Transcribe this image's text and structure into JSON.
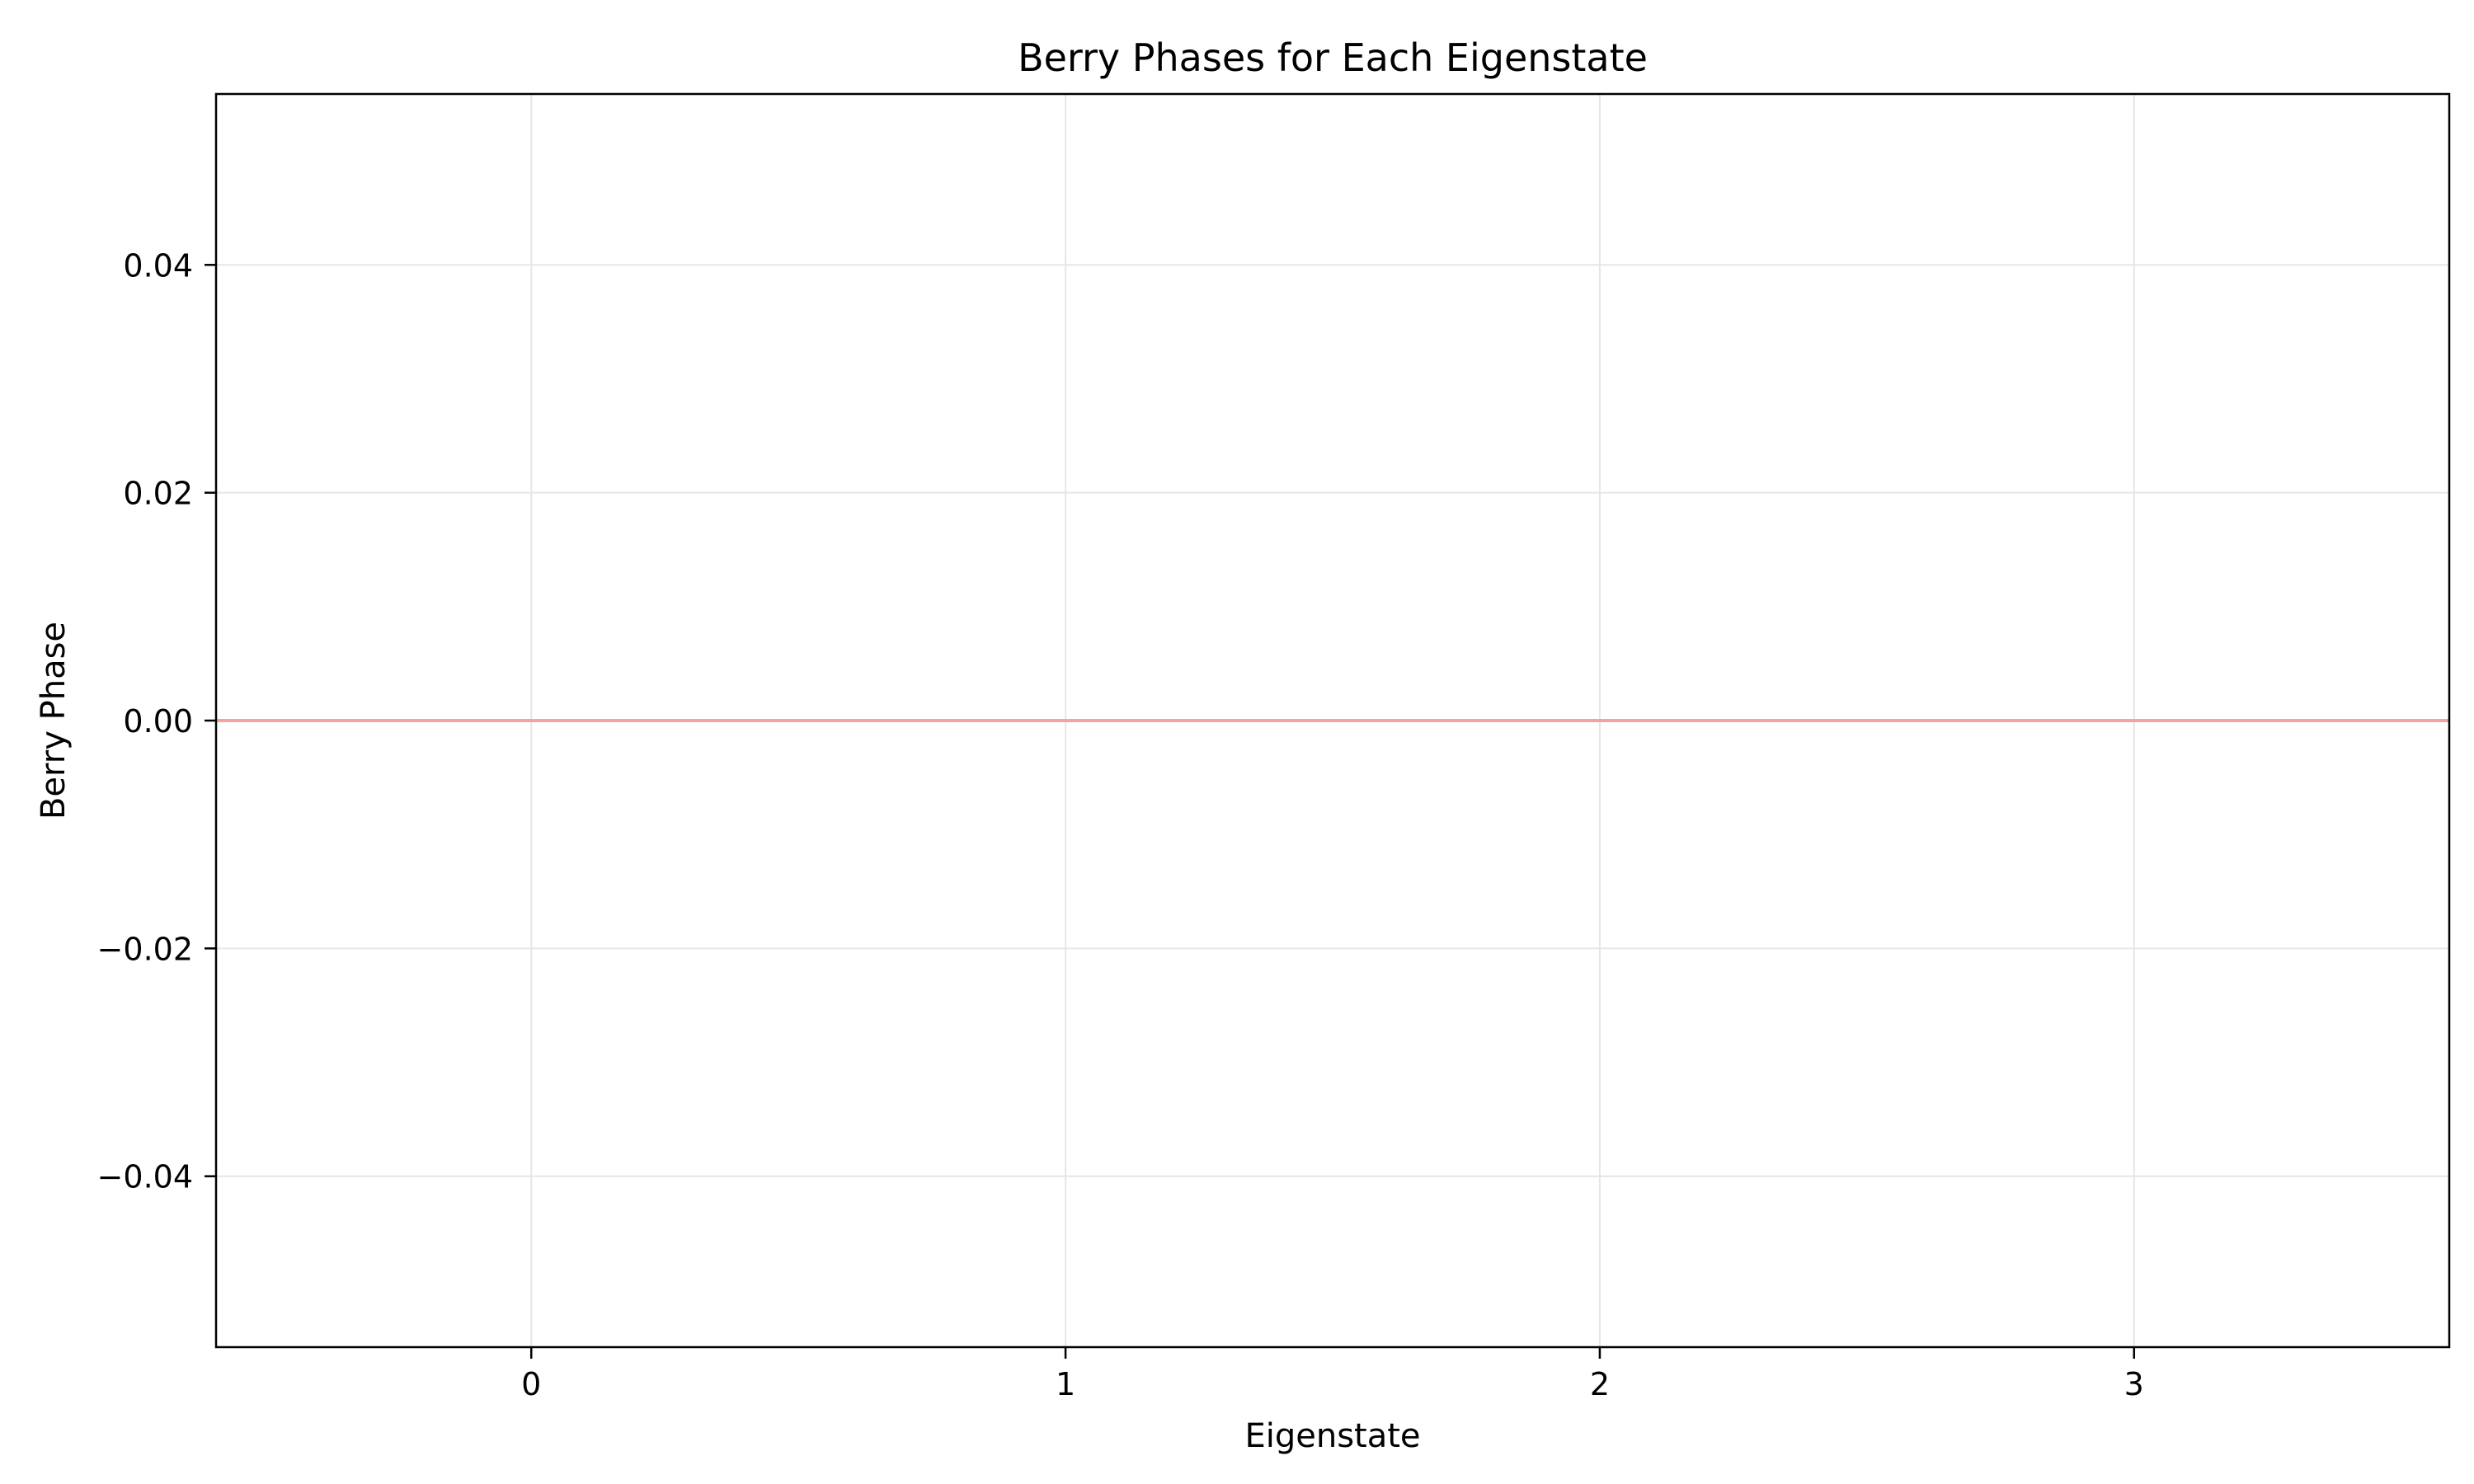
{
  "chart_data": {
    "type": "bar",
    "title": "Berry Phases for Each Eigenstate",
    "xlabel": "Eigenstate",
    "ylabel": "Berry Phase",
    "categories": [
      0,
      1,
      2,
      3
    ],
    "values": [
      0,
      0,
      0,
      0
    ],
    "xlim": [
      -0.59,
      3.59
    ],
    "ylim": [
      -0.055,
      0.055
    ],
    "x_ticks": [
      0,
      1,
      2,
      3
    ],
    "x_tick_labels": [
      "0",
      "1",
      "2",
      "3"
    ],
    "y_ticks": [
      -0.04,
      -0.02,
      0.0,
      0.02,
      0.04
    ],
    "y_tick_labels": [
      "−0.04",
      "−0.02",
      "0.00",
      "0.02",
      "0.04"
    ],
    "reference_line": {
      "y": 0,
      "color": "#f4a3a3"
    },
    "grid": true,
    "colors": {
      "grid": "#e6e6e6",
      "axes": "#000000",
      "bar": "#6495ed"
    }
  }
}
